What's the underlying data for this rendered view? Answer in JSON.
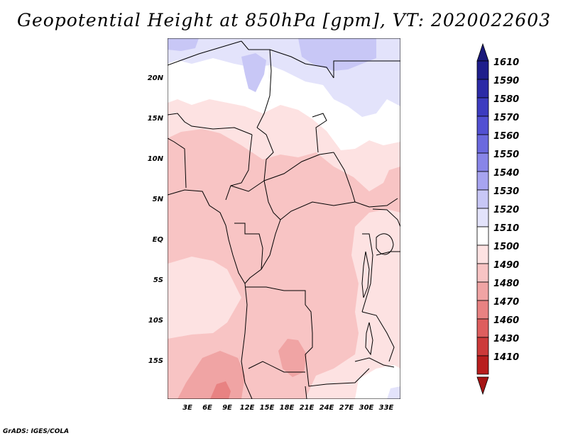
{
  "title": "Geopotential Height at 850hPa [gpm], VT: 2020022603",
  "footer": "GrADS: IGES/COLA",
  "axes": {
    "lat_labels": [
      "20N",
      "15N",
      "10N",
      "5N",
      "EQ",
      "5S",
      "10S",
      "15S"
    ],
    "lon_labels": [
      "3E",
      "6E",
      "9E",
      "12E",
      "15E",
      "18E",
      "21E",
      "24E",
      "27E",
      "30E",
      "33E"
    ]
  },
  "colorbar": {
    "labels": [
      "1610",
      "1590",
      "1580",
      "1570",
      "1560",
      "1550",
      "1540",
      "1530",
      "1520",
      "1510",
      "1500",
      "1490",
      "1480",
      "1470",
      "1460",
      "1430",
      "1410"
    ],
    "colors": [
      "#1f1e8c",
      "#2b2aa6",
      "#3d3cc0",
      "#5250d2",
      "#6b69de",
      "#8885e8",
      "#a7a4f0",
      "#c8c7f6",
      "#e3e3fb",
      "#ffffff",
      "#fde2e2",
      "#f8c4c4",
      "#f0a4a4",
      "#e88282",
      "#de5e5e",
      "#cc3a3a",
      "#b81e1e"
    ],
    "top_color": "#1a197a",
    "bottom_color": "#a51414"
  },
  "field_colors": {
    "land_border": "#000000",
    "lake": "#ffffff"
  }
}
